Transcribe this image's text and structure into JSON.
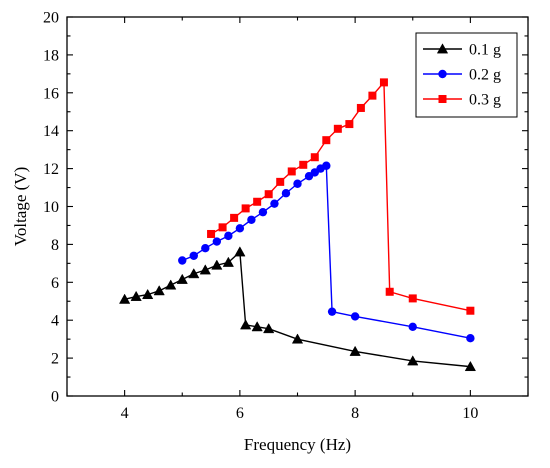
{
  "chart_data": {
    "type": "line",
    "title": "",
    "xlabel": "Frequency (Hz)",
    "ylabel": "Voltage (V)",
    "xlim": [
      3,
      11
    ],
    "ylim": [
      0,
      20
    ],
    "x_ticks": [
      4,
      6,
      8,
      10
    ],
    "y_ticks": [
      0,
      2,
      4,
      6,
      8,
      10,
      12,
      14,
      16,
      18,
      20
    ],
    "grid": false,
    "legend_position": "top-right",
    "series": [
      {
        "name": "0.1 g",
        "color": "#000000",
        "marker": "triangle",
        "x": [
          4.0,
          4.2,
          4.4,
          4.6,
          4.8,
          5.0,
          5.2,
          5.4,
          5.6,
          5.8,
          6.0,
          6.1,
          6.3,
          6.5,
          7.0,
          8.0,
          9.0,
          10.0
        ],
        "y": [
          5.1,
          5.25,
          5.35,
          5.55,
          5.85,
          6.15,
          6.45,
          6.65,
          6.9,
          7.05,
          7.6,
          3.75,
          3.65,
          3.55,
          3.0,
          2.35,
          1.85,
          1.55
        ]
      },
      {
        "name": "0.2 g",
        "color": "#0000ff",
        "marker": "circle",
        "x": [
          5.0,
          5.2,
          5.4,
          5.6,
          5.8,
          6.0,
          6.2,
          6.4,
          6.6,
          6.8,
          7.0,
          7.2,
          7.3,
          7.4,
          7.5,
          7.6,
          8.0,
          9.0,
          10.0
        ],
        "y": [
          7.15,
          7.4,
          7.8,
          8.15,
          8.45,
          8.85,
          9.3,
          9.7,
          10.15,
          10.7,
          11.2,
          11.6,
          11.8,
          12.0,
          12.15,
          4.45,
          4.2,
          3.65,
          3.05
        ]
      },
      {
        "name": "0.3 g",
        "color": "#ff0000",
        "marker": "square",
        "x": [
          5.5,
          5.7,
          5.9,
          6.1,
          6.3,
          6.5,
          6.7,
          6.9,
          7.1,
          7.3,
          7.5,
          7.7,
          7.9,
          8.1,
          8.3,
          8.5,
          8.6,
          9.0,
          10.0
        ],
        "y": [
          8.55,
          8.9,
          9.4,
          9.9,
          10.25,
          10.65,
          11.3,
          11.85,
          12.2,
          12.6,
          13.5,
          14.1,
          14.35,
          15.2,
          15.85,
          16.55,
          5.5,
          5.15,
          4.5
        ]
      }
    ]
  }
}
